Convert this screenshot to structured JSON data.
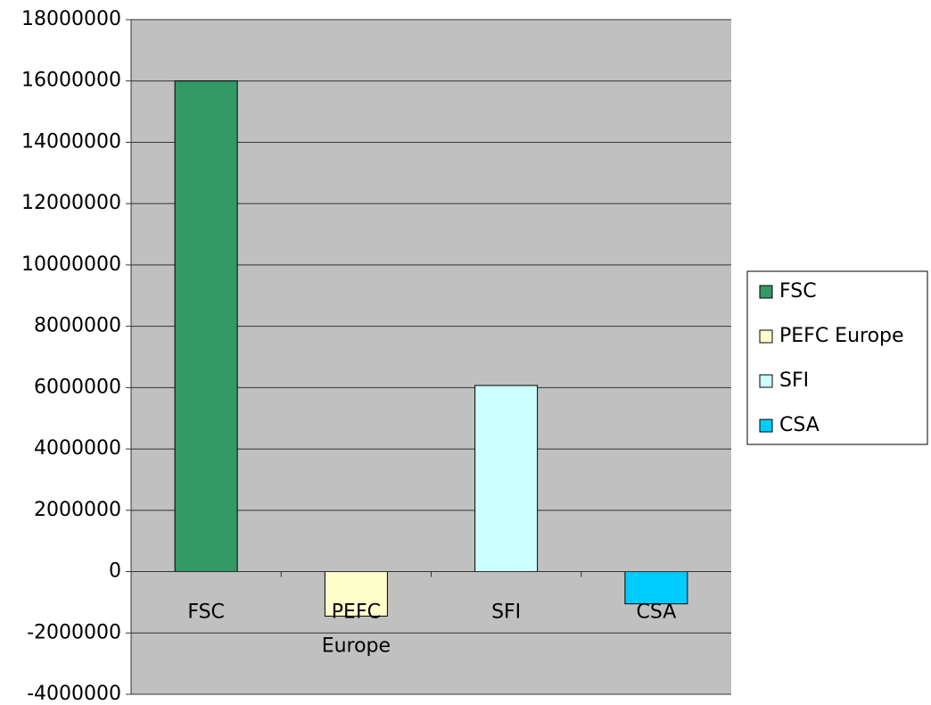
{
  "chart_data": {
    "type": "bar",
    "categories": [
      "FSC",
      "PEFC Europe",
      "SFI",
      "CSA"
    ],
    "values": [
      16000000,
      -1450000,
      6070000,
      -1050000
    ],
    "colors": [
      "#339966",
      "#ffffcc",
      "#ccffff",
      "#00ccff"
    ],
    "ylim": [
      -4000000,
      18000000
    ],
    "yticks": [
      -4000000,
      -2000000,
      0,
      2000000,
      4000000,
      6000000,
      8000000,
      10000000,
      12000000,
      14000000,
      16000000,
      18000000
    ],
    "grid": true,
    "legend": "right"
  }
}
